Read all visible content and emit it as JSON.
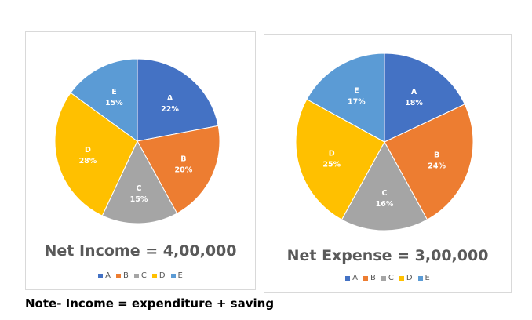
{
  "colors": {
    "A": "#4472c4",
    "B": "#ed7d31",
    "C": "#a5a5a5",
    "D": "#ffc000",
    "E": "#5b9bd5"
  },
  "chart_data": [
    {
      "type": "pie",
      "title": "Net Income = 4,00,000",
      "legend": [
        "A",
        "B",
        "C",
        "D",
        "E"
      ],
      "legend_placement": "bottom",
      "slices": [
        {
          "label": "A",
          "percent": "22%",
          "value": 22
        },
        {
          "label": "B",
          "percent": "20%",
          "value": 20
        },
        {
          "label": "C",
          "percent": "15%",
          "value": 15
        },
        {
          "label": "D",
          "percent": "28%",
          "value": 28
        },
        {
          "label": "E",
          "percent": "15%",
          "value": 15
        }
      ]
    },
    {
      "type": "pie",
      "title": "Net Expense = 3,00,000",
      "legend": [
        "A",
        "B",
        "C",
        "D",
        "E"
      ],
      "legend_placement": "bottom",
      "slices": [
        {
          "label": "A",
          "percent": "18%",
          "value": 18
        },
        {
          "label": "B",
          "percent": "24%",
          "value": 24
        },
        {
          "label": "C",
          "percent": "16%",
          "value": 16
        },
        {
          "label": "D",
          "percent": "25%",
          "value": 25
        },
        {
          "label": "E",
          "percent": "17%",
          "value": 17
        }
      ]
    }
  ],
  "note": "Note- Income = expenditure + saving"
}
